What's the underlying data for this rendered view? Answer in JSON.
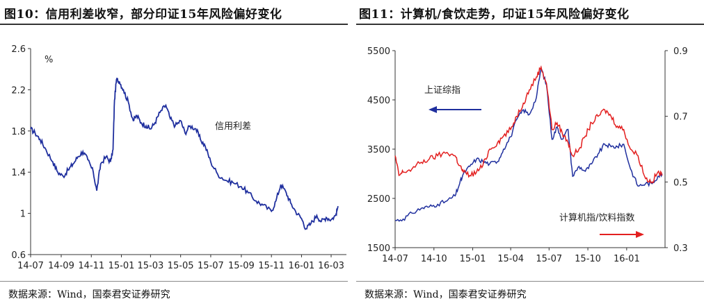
{
  "figures": [
    {
      "title": "图10：信用利差收窄，部分印证15年风险偏好变化",
      "source": "数据来源：Wind，国泰君安证券研究"
    },
    {
      "title": "图11：计算机/食饮走势，印证15年风险偏好变化",
      "source": "数据来源：Wind，国泰君安证券研究"
    }
  ],
  "chart_data": [
    {
      "type": "line",
      "title": "图10：信用利差收窄，部分印证15年风险偏好变化",
      "ylabel": "%",
      "ylim": [
        0.6,
        2.6
      ],
      "yticks": [
        0.6,
        1,
        1.4,
        1.8,
        2.2,
        2.6
      ],
      "ytick_labels": [
        "0.6",
        "1",
        "1.4",
        "1.8",
        "2.2",
        "2.6"
      ],
      "xlim": [
        "2014-07",
        "2016-04"
      ],
      "xticks": [
        "2014-07",
        "2014-09",
        "2014-11",
        "2015-01",
        "2015-03",
        "2015-05",
        "2015-07",
        "2015-09",
        "2015-11",
        "2016-01",
        "2016-03"
      ],
      "xtick_labels": [
        "14-07",
        "14-09",
        "14-11",
        "15-01",
        "15-03",
        "15-05",
        "15-07",
        "15-09",
        "15-11",
        "16-01",
        "16-03"
      ],
      "series": [
        {
          "name": "信用利差",
          "color": "#1f2f9e",
          "x": [
            "2014-07-01",
            "2014-07-10",
            "2014-07-20",
            "2014-08-01",
            "2014-08-15",
            "2014-08-25",
            "2014-09-05",
            "2014-09-15",
            "2014-09-25",
            "2014-10-05",
            "2014-10-15",
            "2014-10-25",
            "2014-11-05",
            "2014-11-12",
            "2014-11-20",
            "2014-12-01",
            "2014-12-10",
            "2014-12-15",
            "2014-12-18",
            "2014-12-22",
            "2014-12-28",
            "2015-01-05",
            "2015-01-15",
            "2015-01-25",
            "2015-02-01",
            "2015-02-10",
            "2015-02-20",
            "2015-03-01",
            "2015-03-10",
            "2015-03-20",
            "2015-04-01",
            "2015-04-10",
            "2015-04-20",
            "2015-05-01",
            "2015-05-10",
            "2015-05-20",
            "2015-06-01",
            "2015-06-10",
            "2015-06-20",
            "2015-07-01",
            "2015-07-15",
            "2015-08-01",
            "2015-08-15",
            "2015-09-01",
            "2015-09-15",
            "2015-10-01",
            "2015-10-15",
            "2015-11-01",
            "2015-11-10",
            "2015-11-20",
            "2015-12-01",
            "2015-12-10",
            "2015-12-20",
            "2016-01-01",
            "2016-01-10",
            "2016-01-20",
            "2016-02-01",
            "2016-02-10",
            "2016-02-20",
            "2016-03-01",
            "2016-03-10",
            "2016-03-15"
          ],
          "y": [
            1.82,
            1.78,
            1.72,
            1.62,
            1.5,
            1.4,
            1.36,
            1.42,
            1.48,
            1.55,
            1.6,
            1.52,
            1.4,
            1.22,
            1.48,
            1.55,
            1.5,
            1.62,
            2.1,
            2.3,
            2.28,
            2.2,
            2.08,
            1.9,
            1.95,
            1.88,
            1.85,
            1.82,
            1.88,
            1.98,
            2.05,
            1.92,
            1.85,
            1.9,
            1.78,
            1.85,
            1.82,
            1.72,
            1.65,
            1.5,
            1.38,
            1.32,
            1.3,
            1.26,
            1.2,
            1.12,
            1.08,
            1.02,
            1.12,
            1.28,
            1.2,
            1.1,
            1.02,
            0.95,
            0.85,
            0.9,
            0.98,
            0.92,
            0.96,
            0.94,
            0.98,
            1.07
          ]
        }
      ],
      "annotations": [
        {
          "text": "信用利差"
        }
      ]
    },
    {
      "type": "line",
      "title": "图11：计算机/食饮走势，印证15年风险偏好变化",
      "ylim_left": [
        1500,
        5500
      ],
      "yticks_left": [
        1500,
        2500,
        3500,
        4500,
        5500
      ],
      "ylim_right": [
        0.3,
        0.9
      ],
      "yticks_right": [
        0.3,
        0.5,
        0.7,
        0.9
      ],
      "xlim": [
        "2014-07",
        "2016-04"
      ],
      "xticks": [
        "2014-07",
        "2014-10",
        "2015-01",
        "2015-04",
        "2015-07",
        "2015-10",
        "2016-01"
      ],
      "xtick_labels": [
        "14-07",
        "14-10",
        "15-01",
        "15-04",
        "15-07",
        "15-10",
        "16-01"
      ],
      "series": [
        {
          "name": "上证综指",
          "axis": "left",
          "color": "#1f2f9e",
          "x": [
            "2014-07-01",
            "2014-07-20",
            "2014-08-10",
            "2014-09-01",
            "2014-09-20",
            "2014-10-10",
            "2014-11-01",
            "2014-11-20",
            "2014-12-01",
            "2014-12-10",
            "2014-12-25",
            "2015-01-10",
            "2015-01-25",
            "2015-02-10",
            "2015-03-01",
            "2015-03-15",
            "2015-04-01",
            "2015-04-15",
            "2015-05-01",
            "2015-05-15",
            "2015-06-01",
            "2015-06-12",
            "2015-06-25",
            "2015-07-08",
            "2015-07-20",
            "2015-08-01",
            "2015-08-15",
            "2015-08-26",
            "2015-09-10",
            "2015-09-25",
            "2015-10-10",
            "2015-10-25",
            "2015-11-10",
            "2015-11-25",
            "2015-12-10",
            "2015-12-25",
            "2016-01-10",
            "2016-01-28",
            "2016-02-15",
            "2016-03-01",
            "2016-03-15",
            "2016-03-25"
          ],
          "y": [
            2050,
            2080,
            2200,
            2300,
            2330,
            2380,
            2450,
            2550,
            2800,
            3000,
            3150,
            3300,
            3250,
            3200,
            3250,
            3500,
            3750,
            4100,
            4300,
            4200,
            4550,
            5150,
            4800,
            3700,
            3950,
            3700,
            3900,
            2950,
            3150,
            3050,
            3200,
            3400,
            3600,
            3550,
            3550,
            3600,
            3100,
            2750,
            2800,
            2800,
            2950,
            3000
          ]
        },
        {
          "name": "计算机指/饮料指数",
          "axis": "right",
          "color": "#e31f1f",
          "x": [
            "2014-07-01",
            "2014-07-10",
            "2014-07-20",
            "2014-08-10",
            "2014-09-01",
            "2014-09-20",
            "2014-10-10",
            "2014-11-01",
            "2014-11-20",
            "2014-12-01",
            "2014-12-10",
            "2014-12-25",
            "2015-01-10",
            "2015-01-25",
            "2015-02-10",
            "2015-03-01",
            "2015-03-15",
            "2015-04-01",
            "2015-04-15",
            "2015-05-01",
            "2015-05-15",
            "2015-06-01",
            "2015-06-12",
            "2015-06-25",
            "2015-07-08",
            "2015-07-20",
            "2015-08-01",
            "2015-08-15",
            "2015-08-26",
            "2015-09-10",
            "2015-09-25",
            "2015-10-10",
            "2015-10-25",
            "2015-11-10",
            "2015-11-25",
            "2015-12-10",
            "2015-12-25",
            "2016-01-10",
            "2016-01-28",
            "2016-02-15",
            "2016-03-01",
            "2016-03-15",
            "2016-03-25"
          ],
          "y": [
            0.58,
            0.52,
            0.53,
            0.54,
            0.56,
            0.57,
            0.58,
            0.59,
            0.58,
            0.55,
            0.53,
            0.52,
            0.53,
            0.55,
            0.6,
            0.62,
            0.64,
            0.66,
            0.7,
            0.74,
            0.78,
            0.82,
            0.85,
            0.8,
            0.66,
            0.68,
            0.65,
            0.62,
            0.58,
            0.6,
            0.64,
            0.68,
            0.7,
            0.72,
            0.7,
            0.67,
            0.66,
            0.6,
            0.58,
            0.51,
            0.5,
            0.53,
            0.52
          ]
        }
      ],
      "annotations": [
        {
          "text": "上证综指",
          "arrow": "left"
        },
        {
          "text": "计算机指/饮料指数",
          "arrow": "right"
        }
      ]
    }
  ]
}
